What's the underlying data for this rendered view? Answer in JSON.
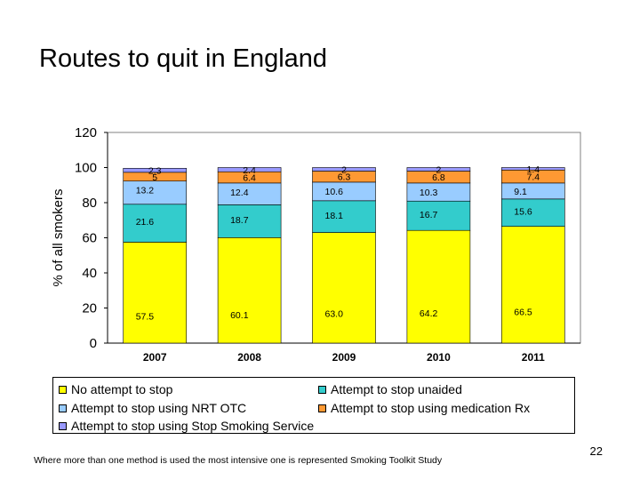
{
  "title": "Routes to quit in England",
  "footnote": "Where more than one method is used the most intensive one is represented  Smoking Toolkit Study",
  "page_number": "22",
  "chart_data": {
    "type": "bar",
    "stacked": true,
    "title": "Routes to quit in England",
    "xlabel": "",
    "ylabel": "% of all smokers",
    "ylim": [
      0,
      120
    ],
    "yticks": [
      0,
      20,
      40,
      60,
      80,
      100,
      120
    ],
    "grid": false,
    "legend_position": "bottom",
    "categories": [
      "2007",
      "2008",
      "2009",
      "2010",
      "2011"
    ],
    "series": [
      {
        "name": "No attempt to stop",
        "color": "#ffff00",
        "values": [
          57.5,
          60.1,
          63.0,
          64.2,
          66.5
        ],
        "labels": [
          "57.5",
          "60.1",
          "63.0",
          "64.2",
          "66.5"
        ]
      },
      {
        "name": "Attempt to stop unaided",
        "color": "#33cccc",
        "values": [
          21.6,
          18.7,
          18.1,
          16.7,
          15.6
        ],
        "labels": [
          "21.6",
          "18.7",
          "18.1",
          "16.7",
          "15.6"
        ]
      },
      {
        "name": "Attempt to stop using NRT OTC",
        "color": "#99ccff",
        "values": [
          13.2,
          12.4,
          10.6,
          10.3,
          9.1
        ],
        "labels": [
          "13.2",
          "12.4",
          "10.6",
          "10.3",
          "9.1"
        ]
      },
      {
        "name": "Attempt to stop using medication Rx",
        "color": "#ff9933",
        "values": [
          5,
          6.4,
          6.3,
          6.8,
          7.4
        ],
        "labels": [
          "5",
          "6.4",
          "6.3",
          "6.8",
          "7.4"
        ]
      },
      {
        "name": "Attempt to stop using Stop Smoking Service",
        "color": "#9999ff",
        "values": [
          2.3,
          2.4,
          2,
          2,
          1.4
        ],
        "labels": [
          "2.3",
          "2.4",
          "2",
          "2",
          "1.4"
        ]
      }
    ]
  },
  "legend": [
    {
      "label": "No attempt to stop",
      "color": "#ffff00"
    },
    {
      "label": "Attempt to stop unaided",
      "color": "#33cccc"
    },
    {
      "label": "Attempt to stop using NRT OTC",
      "color": "#99ccff"
    },
    {
      "label": "Attempt to stop using medication Rx",
      "color": "#ff9933"
    },
    {
      "label": "Attempt to stop using Stop Smoking Service",
      "color": "#9999ff"
    }
  ]
}
